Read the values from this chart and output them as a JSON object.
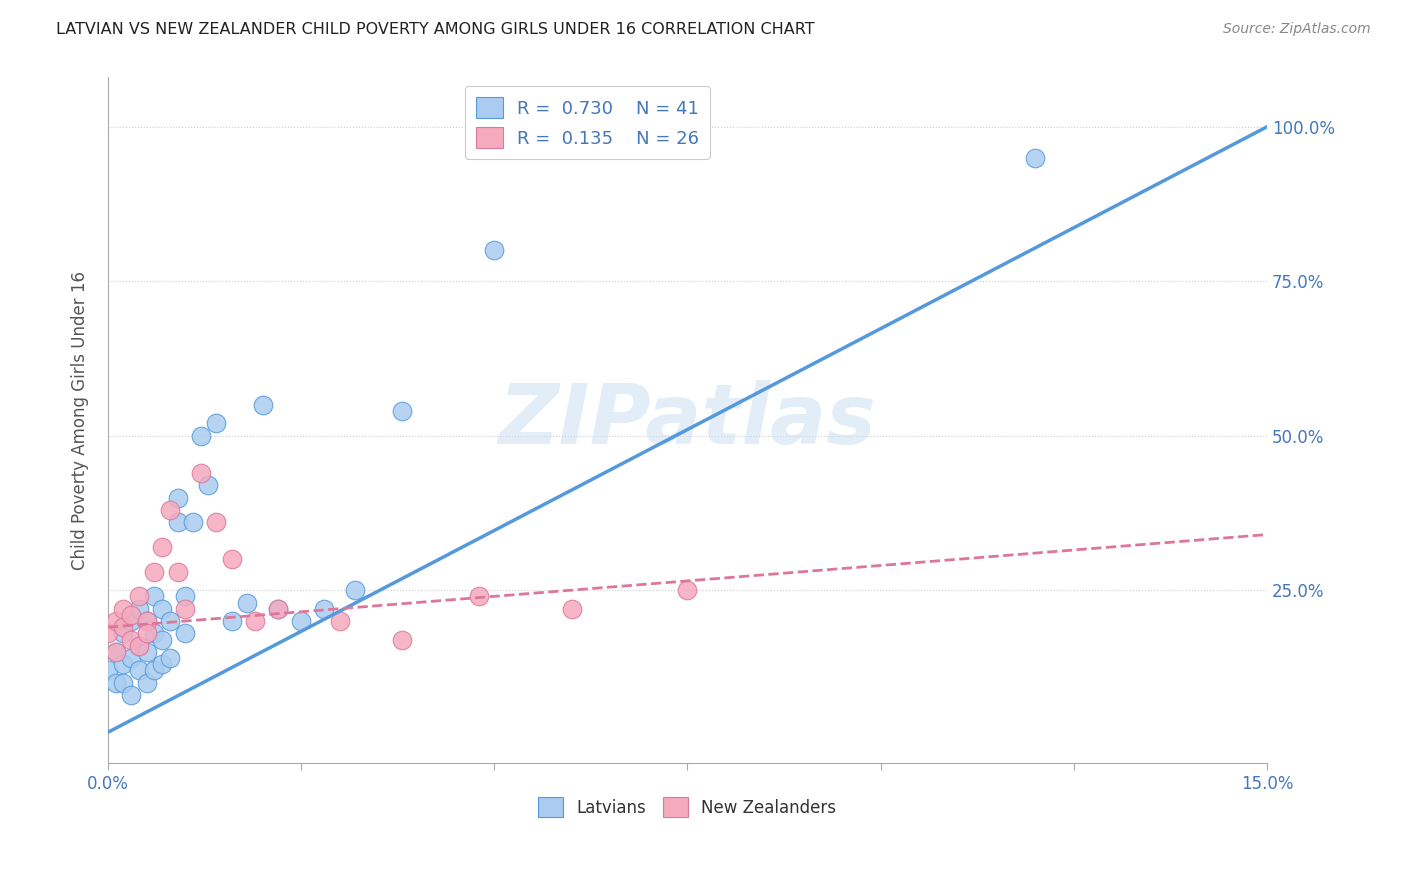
{
  "title": "LATVIAN VS NEW ZEALANDER CHILD POVERTY AMONG GIRLS UNDER 16 CORRELATION CHART",
  "source": "Source: ZipAtlas.com",
  "ylabel": "Child Poverty Among Girls Under 16",
  "xlim": [
    0.0,
    0.15
  ],
  "ylim": [
    -0.03,
    1.08
  ],
  "legend_latvians_R": "0.730",
  "legend_latvians_N": "41",
  "legend_nz_R": "0.135",
  "legend_nz_N": "26",
  "latvian_color": "#aaccf0",
  "nz_color": "#f5aabe",
  "line_latvian_color": "#5599dd",
  "line_nz_color": "#dd7799",
  "watermark": "ZIPatlas",
  "latvian_x": [
    0.0,
    0.001,
    0.001,
    0.002,
    0.002,
    0.002,
    0.003,
    0.003,
    0.003,
    0.004,
    0.004,
    0.004,
    0.005,
    0.005,
    0.005,
    0.006,
    0.006,
    0.006,
    0.007,
    0.007,
    0.007,
    0.008,
    0.008,
    0.009,
    0.009,
    0.01,
    0.01,
    0.011,
    0.012,
    0.013,
    0.014,
    0.016,
    0.018,
    0.02,
    0.022,
    0.025,
    0.028,
    0.032,
    0.038,
    0.05,
    0.12
  ],
  "latvian_y": [
    0.12,
    0.1,
    0.15,
    0.1,
    0.13,
    0.18,
    0.08,
    0.14,
    0.2,
    0.12,
    0.16,
    0.22,
    0.1,
    0.15,
    0.2,
    0.12,
    0.18,
    0.24,
    0.13,
    0.17,
    0.22,
    0.14,
    0.2,
    0.36,
    0.4,
    0.18,
    0.24,
    0.36,
    0.5,
    0.42,
    0.52,
    0.2,
    0.23,
    0.55,
    0.22,
    0.2,
    0.22,
    0.25,
    0.54,
    0.8,
    0.95
  ],
  "nz_x": [
    0.0,
    0.001,
    0.001,
    0.002,
    0.002,
    0.003,
    0.003,
    0.004,
    0.004,
    0.005,
    0.005,
    0.006,
    0.007,
    0.008,
    0.009,
    0.01,
    0.012,
    0.014,
    0.016,
    0.019,
    0.022,
    0.03,
    0.038,
    0.048,
    0.06,
    0.075
  ],
  "nz_y": [
    0.18,
    0.2,
    0.15,
    0.19,
    0.22,
    0.17,
    0.21,
    0.16,
    0.24,
    0.2,
    0.18,
    0.28,
    0.32,
    0.38,
    0.28,
    0.22,
    0.44,
    0.36,
    0.3,
    0.2,
    0.22,
    0.2,
    0.17,
    0.24,
    0.22,
    0.25
  ]
}
